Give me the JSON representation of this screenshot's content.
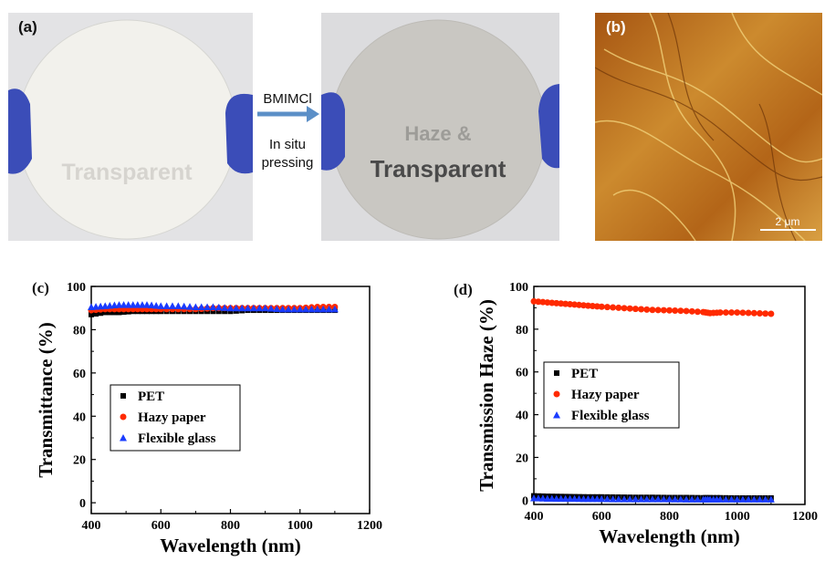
{
  "panels": {
    "a": {
      "label": "(a)",
      "left_photo_word": "Transparent",
      "right_photo_words": [
        "Haze &",
        "Transparent"
      ],
      "arrow_labels": [
        "BMIMCl",
        "In situ",
        "pressing"
      ]
    },
    "b": {
      "label": "(b)",
      "scale_bar": "2 μm"
    },
    "c": {
      "label": "(c)"
    },
    "d": {
      "label": "(d)"
    }
  },
  "colors": {
    "PET": "#000000",
    "Hazy paper": "#ff2a00",
    "Flexible glass": "#1a3cff",
    "afm": "#b8681c"
  },
  "chart_data": [
    {
      "type": "scatter",
      "xlabel": "Wavelength (nm)",
      "ylabel": "Transmittance (%)",
      "xlim": [
        400,
        1200
      ],
      "ylim": [
        -5,
        100
      ],
      "xticks": [
        400,
        600,
        800,
        1000,
        1200
      ],
      "yticks": [
        0,
        20,
        40,
        60,
        80,
        100
      ],
      "legend_position": "bottom-left",
      "x": [
        400,
        440,
        480,
        520,
        560,
        600,
        650,
        700,
        750,
        800,
        850,
        900,
        950,
        1000,
        1050,
        1100
      ],
      "series": [
        {
          "name": "PET",
          "marker": "square",
          "values": [
            87,
            88,
            88,
            88.5,
            88.5,
            88.5,
            88.5,
            88.5,
            88.5,
            88.5,
            89,
            89,
            89,
            89,
            89,
            89
          ]
        },
        {
          "name": "Hazy paper",
          "marker": "circle",
          "values": [
            89,
            89.5,
            89.5,
            89.5,
            89.5,
            89.5,
            89.5,
            89.5,
            90,
            90,
            90,
            90,
            90,
            90,
            90.5,
            90.5
          ]
        },
        {
          "name": "Flexible glass",
          "marker": "triangle",
          "values": [
            90.5,
            91,
            91.5,
            91.5,
            91.5,
            91,
            91,
            90.5,
            90.5,
            90,
            90,
            90,
            89.5,
            89.5,
            89.5,
            89.5
          ]
        }
      ]
    },
    {
      "type": "scatter",
      "xlabel": "Wavelength (nm)",
      "ylabel": "Transmission Haze (%)",
      "xlim": [
        400,
        1200
      ],
      "ylim": [
        -2,
        100
      ],
      "xticks": [
        400,
        600,
        800,
        1000,
        1200
      ],
      "yticks": [
        0,
        20,
        40,
        60,
        80,
        100
      ],
      "legend_position": "middle-left",
      "x": [
        400,
        440,
        480,
        520,
        560,
        600,
        650,
        700,
        750,
        800,
        850,
        900,
        920,
        950,
        1000,
        1050,
        1100
      ],
      "series": [
        {
          "name": "PET",
          "marker": "square",
          "values": [
            2,
            1.8,
            1.7,
            1.6,
            1.5,
            1.5,
            1.4,
            1.3,
            1.3,
            1.2,
            1.2,
            1.1,
            1.1,
            1.1,
            1.0,
            1.0,
            1.0
          ]
        },
        {
          "name": "Hazy paper",
          "marker": "circle",
          "values": [
            93,
            92.5,
            92,
            91.5,
            91,
            90.5,
            90,
            89.5,
            89,
            88.8,
            88.5,
            88,
            87.5,
            87.8,
            87.8,
            87.5,
            87.2
          ]
        },
        {
          "name": "Flexible glass",
          "marker": "triangle",
          "values": [
            1.0,
            0.8,
            0.7,
            0.7,
            0.6,
            0.6,
            0.5,
            0.5,
            0.5,
            0.5,
            0.4,
            0.4,
            0.4,
            0.4,
            0.4,
            0.4,
            0.4
          ]
        }
      ]
    }
  ]
}
